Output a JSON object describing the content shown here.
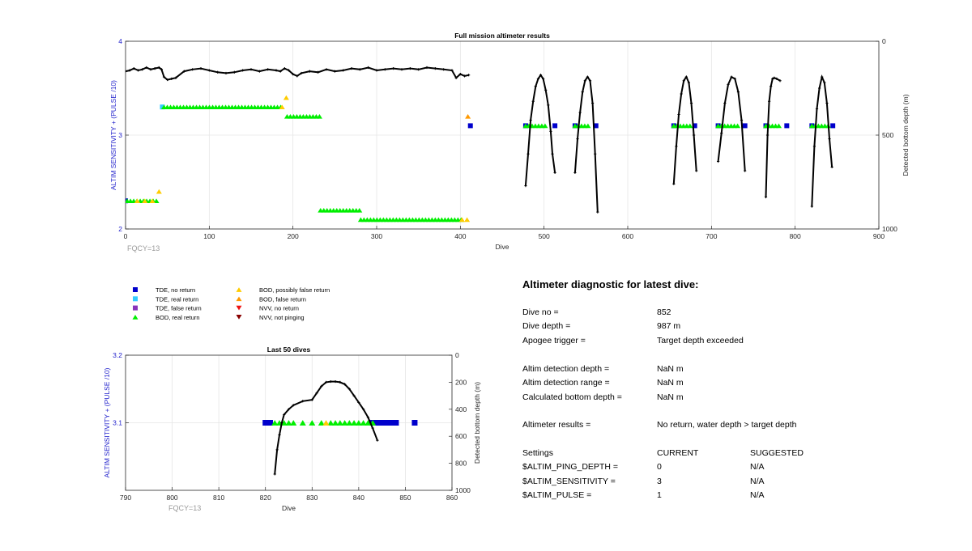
{
  "colors": {
    "tde_no_return": "#0000cc",
    "tde_real_return": "#33ccff",
    "tde_false_return": "#8833bb",
    "bod_real_return": "#00ee00",
    "bod_possibly_false": "#ffcc00",
    "bod_false_return": "#ff9900",
    "nvv_no_return": "#ee1111",
    "nvv_not_pinging": "#880000",
    "depth_trace": "#000000",
    "left_axis_label": "#2222cc",
    "fqcy_text": "#999999"
  },
  "legend": [
    {
      "label": "TDE, no return",
      "marker": "square",
      "color": "#0000cc"
    },
    {
      "label": "TDE, real return",
      "marker": "square",
      "color": "#33ccff"
    },
    {
      "label": "TDE, false return",
      "marker": "square",
      "color": "#8833bb"
    },
    {
      "label": "BOD, real return",
      "marker": "triangle-up",
      "color": "#00ee00"
    },
    {
      "label": "BOD, possibly false return",
      "marker": "triangle-up",
      "color": "#ffcc00"
    },
    {
      "label": "BOD, false return",
      "marker": "triangle-up",
      "color": "#ff9900"
    },
    {
      "label": "NVV, no return",
      "marker": "triangle-down",
      "color": "#ee1111"
    },
    {
      "label": "NVV, not pinging",
      "marker": "triangle-down",
      "color": "#880000"
    }
  ],
  "chart_data": [
    {
      "type": "scatter",
      "title": "Full mission altimeter results",
      "xlabel": "Dive",
      "ylabel": "ALTIM SENSITIVITY + (PULSE /10)",
      "y2label": "Detected bottom depth (m)",
      "annotation": "FQCY=13",
      "xlim": [
        0,
        900
      ],
      "ylim": [
        2,
        4
      ],
      "y2lim": [
        1000,
        0
      ],
      "xticks": [
        0,
        100,
        200,
        300,
        400,
        500,
        600,
        700,
        800,
        900
      ],
      "yticks": [
        2,
        3,
        4
      ],
      "y2ticks": [
        0,
        500,
        1000
      ],
      "grid": true,
      "sensitivity_series": [
        {
          "name": "TDE, no return",
          "x": [
            0,
            412,
            478,
            513,
            537,
            562,
            655,
            680,
            708,
            740,
            765,
            790,
            820,
            845
          ],
          "y": [
            2.3,
            3.1,
            3.1,
            3.1,
            3.1,
            3.1,
            3.1,
            3.1,
            3.1,
            3.1,
            3.1,
            3.1,
            3.1,
            3.1
          ]
        },
        {
          "name": "TDE, real return",
          "x": [
            44
          ],
          "y": [
            3.3
          ]
        },
        {
          "name": "BOD, real return",
          "ranges": [
            {
              "x_start": 2,
              "x_end": 37,
              "y": 2.3
            },
            {
              "x_start": 46,
              "x_end": 188,
              "y": 3.3
            },
            {
              "x_start": 193,
              "x_end": 233,
              "y": 3.2
            },
            {
              "x_start": 233,
              "x_end": 283,
              "y": 2.2
            },
            {
              "x_start": 281,
              "x_end": 402,
              "y": 2.1
            },
            {
              "x_start": 478,
              "x_end": 505,
              "y": 3.1
            },
            {
              "x_start": 537,
              "x_end": 555,
              "y": 3.1
            },
            {
              "x_start": 655,
              "x_end": 677,
              "y": 3.1
            },
            {
              "x_start": 708,
              "x_end": 735,
              "y": 3.1
            },
            {
              "x_start": 765,
              "x_end": 782,
              "y": 3.1
            },
            {
              "x_start": 820,
              "x_end": 843,
              "y": 3.1
            }
          ]
        },
        {
          "name": "BOD, possibly false return",
          "x": [
            14,
            23,
            32,
            40,
            187,
            192,
            402,
            408
          ],
          "y": [
            2.3,
            2.3,
            2.3,
            2.4,
            3.3,
            3.4,
            2.1,
            2.1
          ]
        },
        {
          "name": "BOD, false return",
          "x": [
            409
          ],
          "y": [
            3.2
          ]
        }
      ],
      "depth_segments": [
        {
          "x": [
            0,
            5,
            10,
            15,
            20,
            25,
            30,
            35,
            40,
            43,
            46,
            50,
            55,
            60,
            70,
            80,
            90,
            100,
            110,
            120,
            130,
            140,
            150,
            160,
            170,
            180,
            185,
            190,
            195,
            200,
            205,
            210,
            220,
            230,
            240,
            250,
            260,
            270,
            280,
            290,
            300,
            310,
            320,
            330,
            340,
            350,
            360,
            370,
            380,
            390,
            395,
            400,
            405,
            410
          ],
          "y": [
            160,
            155,
            145,
            155,
            150,
            140,
            150,
            145,
            140,
            150,
            190,
            205,
            200,
            195,
            160,
            150,
            145,
            155,
            165,
            170,
            165,
            155,
            150,
            160,
            150,
            155,
            160,
            145,
            155,
            175,
            185,
            170,
            160,
            165,
            150,
            160,
            155,
            145,
            150,
            140,
            155,
            150,
            145,
            150,
            145,
            150,
            140,
            145,
            150,
            155,
            195,
            175,
            185,
            180
          ]
        },
        {
          "x": [
            478,
            481,
            484,
            487,
            490,
            493,
            496,
            499,
            502,
            505,
            508,
            510,
            513
          ],
          "y": [
            770,
            600,
            420,
            320,
            240,
            200,
            180,
            200,
            260,
            340,
            480,
            600,
            700
          ]
        },
        {
          "x": [
            537,
            540,
            543,
            546,
            549,
            552,
            555,
            558,
            561,
            564
          ],
          "y": [
            700,
            520,
            380,
            270,
            210,
            190,
            210,
            330,
            600,
            910
          ]
        },
        {
          "x": [
            655,
            658,
            661,
            664,
            667,
            670,
            673,
            676,
            679,
            682
          ],
          "y": [
            760,
            560,
            390,
            280,
            210,
            190,
            220,
            330,
            500,
            690
          ]
        },
        {
          "x": [
            708,
            712,
            716,
            720,
            724,
            728,
            732,
            736,
            740
          ],
          "y": [
            640,
            490,
            330,
            230,
            190,
            200,
            270,
            420,
            690
          ]
        },
        {
          "x": [
            765,
            767,
            769,
            771,
            773,
            775,
            778,
            782
          ],
          "y": [
            830,
            500,
            320,
            240,
            200,
            195,
            200,
            210
          ]
        },
        {
          "x": [
            820,
            823,
            826,
            829,
            832,
            835,
            838,
            841,
            844
          ],
          "y": [
            880,
            560,
            360,
            250,
            190,
            220,
            330,
            520,
            670
          ]
        }
      ]
    },
    {
      "type": "scatter",
      "title": "Last 50 dives",
      "xlabel": "Dive",
      "ylabel": "ALTIM SENSITIVITY + (PULSE /10)",
      "y2label": "Detected bottom depth (m)",
      "annotation": "FQCY=13",
      "xlim": [
        790,
        860
      ],
      "ylim": [
        3,
        3.2
      ],
      "y2lim": [
        1000,
        0
      ],
      "xticks": [
        790,
        800,
        810,
        820,
        830,
        840,
        850,
        860
      ],
      "yticks": [
        3.1,
        3.2
      ],
      "y2ticks": [
        0,
        200,
        400,
        600,
        800,
        1000
      ],
      "grid": true,
      "sensitivity_series": [
        {
          "name": "TDE, no return",
          "x": [
            820,
            821,
            843,
            844,
            845,
            846,
            847,
            848,
            852
          ],
          "y": [
            3.1,
            3.1,
            3.1,
            3.1,
            3.1,
            3.1,
            3.1,
            3.1,
            3.1
          ]
        },
        {
          "name": "BOD, real return",
          "x": [
            822,
            823,
            824,
            825,
            826,
            828,
            830,
            832,
            834,
            835,
            836,
            837,
            838,
            839,
            840,
            841,
            842,
            843
          ],
          "y": [
            3.1,
            3.1,
            3.1,
            3.1,
            3.1,
            3.1,
            3.1,
            3.1,
            3.1,
            3.1,
            3.1,
            3.1,
            3.1,
            3.1,
            3.1,
            3.1,
            3.1,
            3.1
          ]
        },
        {
          "name": "BOD, possibly false return",
          "x": [
            833
          ],
          "y": [
            3.1
          ]
        }
      ],
      "depth_segments": [
        {
          "x": [
            822,
            822.5,
            823,
            823.5,
            824,
            825,
            826,
            828,
            830,
            831,
            832,
            833,
            834,
            835,
            836,
            837,
            838,
            839,
            840,
            841,
            842,
            843,
            844
          ],
          "y": [
            880,
            700,
            590,
            500,
            440,
            400,
            370,
            340,
            330,
            280,
            230,
            200,
            195,
            195,
            200,
            215,
            250,
            300,
            350,
            400,
            460,
            540,
            630
          ]
        }
      ]
    }
  ],
  "diagnostic": {
    "title": "Altimeter diagnostic for latest dive:",
    "rows": [
      {
        "label": "Dive no =",
        "value": "852",
        "value2": ""
      },
      {
        "label": "Dive depth =",
        "value": "987 m",
        "value2": ""
      },
      {
        "label": "Apogee trigger =",
        "value": "Target depth exceeded",
        "value2": ""
      },
      {
        "label": "Altim detection depth =",
        "value": "NaN m",
        "value2": ""
      },
      {
        "label": "Altim detection range =",
        "value": "NaN m",
        "value2": ""
      },
      {
        "label": "Calculated bottom depth =",
        "value": "NaN m",
        "value2": ""
      },
      {
        "label": "Altimeter results =",
        "value": "No return, water depth > target depth",
        "value2": ""
      },
      {
        "label": "Settings",
        "value": "CURRENT",
        "value2": "SUGGESTED"
      },
      {
        "label": "$ALTIM_PING_DEPTH =",
        "value": "0",
        "value2": "N/A"
      },
      {
        "label": "$ALTIM_SENSITIVITY =",
        "value": "3",
        "value2": "N/A"
      },
      {
        "label": "$ALTIM_PULSE =",
        "value": "1",
        "value2": "N/A"
      }
    ]
  }
}
